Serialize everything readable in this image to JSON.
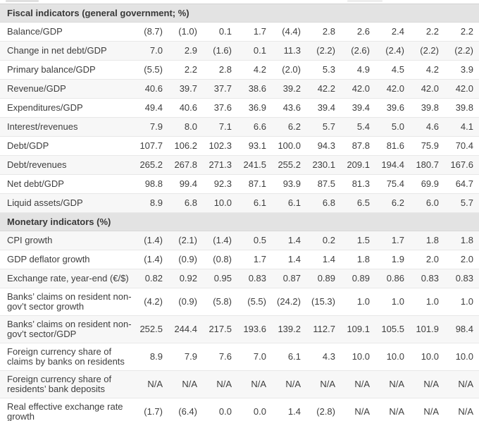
{
  "colors": {
    "section_header_bg": "#e3e3e3",
    "row_stripe_bg": "#f7f7f7",
    "row_bg": "#ffffff",
    "text": "#3e3e3e",
    "row_border": "#e8e8e8"
  },
  "table": {
    "num_value_columns": 10,
    "sections": [
      {
        "header": "Fiscal indicators (general government; %)",
        "rows": [
          {
            "label": "Balance/GDP",
            "values": [
              "(8.7)",
              "(1.0)",
              "0.1",
              "1.7",
              "(4.4)",
              "2.8",
              "2.6",
              "2.4",
              "2.2",
              "2.2"
            ]
          },
          {
            "label": "Change in net debt/GDP",
            "values": [
              "7.0",
              "2.9",
              "(1.6)",
              "0.1",
              "11.3",
              "(2.2)",
              "(2.6)",
              "(2.4)",
              "(2.2)",
              "(2.2)"
            ]
          },
          {
            "label": "Primary balance/GDP",
            "values": [
              "(5.5)",
              "2.2",
              "2.8",
              "4.2",
              "(2.0)",
              "5.3",
              "4.9",
              "4.5",
              "4.2",
              "3.9"
            ]
          },
          {
            "label": "Revenue/GDP",
            "values": [
              "40.6",
              "39.7",
              "37.7",
              "38.6",
              "39.2",
              "42.2",
              "42.0",
              "42.0",
              "42.0",
              "42.0"
            ]
          },
          {
            "label": "Expenditures/GDP",
            "values": [
              "49.4",
              "40.6",
              "37.6",
              "36.9",
              "43.6",
              "39.4",
              "39.4",
              "39.6",
              "39.8",
              "39.8"
            ]
          },
          {
            "label": "Interest/revenues",
            "values": [
              "7.9",
              "8.0",
              "7.1",
              "6.6",
              "6.2",
              "5.7",
              "5.4",
              "5.0",
              "4.6",
              "4.1"
            ]
          },
          {
            "label": "Debt/GDP",
            "values": [
              "107.7",
              "106.2",
              "102.3",
              "93.1",
              "100.0",
              "94.3",
              "87.8",
              "81.6",
              "75.9",
              "70.4"
            ]
          },
          {
            "label": "Debt/revenues",
            "values": [
              "265.2",
              "267.8",
              "271.3",
              "241.5",
              "255.2",
              "230.1",
              "209.1",
              "194.4",
              "180.7",
              "167.6"
            ]
          },
          {
            "label": "Net debt/GDP",
            "values": [
              "98.8",
              "99.4",
              "92.3",
              "87.1",
              "93.9",
              "87.5",
              "81.3",
              "75.4",
              "69.9",
              "64.7"
            ]
          },
          {
            "label": "Liquid assets/GDP",
            "values": [
              "8.9",
              "6.8",
              "10.0",
              "6.1",
              "6.1",
              "6.8",
              "6.5",
              "6.2",
              "6.0",
              "5.7"
            ]
          }
        ]
      },
      {
        "header": "Monetary indicators (%)",
        "rows": [
          {
            "label": "CPI growth",
            "values": [
              "(1.4)",
              "(2.1)",
              "(1.4)",
              "0.5",
              "1.4",
              "0.2",
              "1.5",
              "1.7",
              "1.8",
              "1.8"
            ]
          },
          {
            "label": "GDP deflator growth",
            "values": [
              "(1.4)",
              "(0.9)",
              "(0.8)",
              "1.7",
              "1.4",
              "1.4",
              "1.8",
              "1.9",
              "2.0",
              "2.0"
            ]
          },
          {
            "label": "Exchange rate, year-end (€/$)",
            "values": [
              "0.82",
              "0.92",
              "0.95",
              "0.83",
              "0.87",
              "0.89",
              "0.89",
              "0.86",
              "0.83",
              "0.83"
            ]
          },
          {
            "label": "Banks’ claims on resident non-gov’t sector growth",
            "values": [
              "(4.2)",
              "(0.9)",
              "(5.8)",
              "(5.5)",
              "(24.2)",
              "(15.3)",
              "1.0",
              "1.0",
              "1.0",
              "1.0"
            ]
          },
          {
            "label": "Banks’ claims on resident non-gov’t sector/GDP",
            "values": [
              "252.5",
              "244.4",
              "217.5",
              "193.6",
              "139.2",
              "112.7",
              "109.1",
              "105.5",
              "101.9",
              "98.4"
            ]
          },
          {
            "label": "Foreign currency share of claims by banks on residents",
            "values": [
              "8.9",
              "7.9",
              "7.6",
              "7.0",
              "6.1",
              "4.3",
              "10.0",
              "10.0",
              "10.0",
              "10.0"
            ]
          },
          {
            "label": "Foreign currency share of residents’ bank deposits",
            "values": [
              "N/A",
              "N/A",
              "N/A",
              "N/A",
              "N/A",
              "N/A",
              "N/A",
              "N/A",
              "N/A",
              "N/A"
            ]
          },
          {
            "label": "Real effective exchange rate growth",
            "values": [
              "(1.7)",
              "(6.4)",
              "0.0",
              "0.0",
              "1.4",
              "(2.8)",
              "N/A",
              "N/A",
              "N/A",
              "N/A"
            ]
          }
        ]
      }
    ]
  }
}
